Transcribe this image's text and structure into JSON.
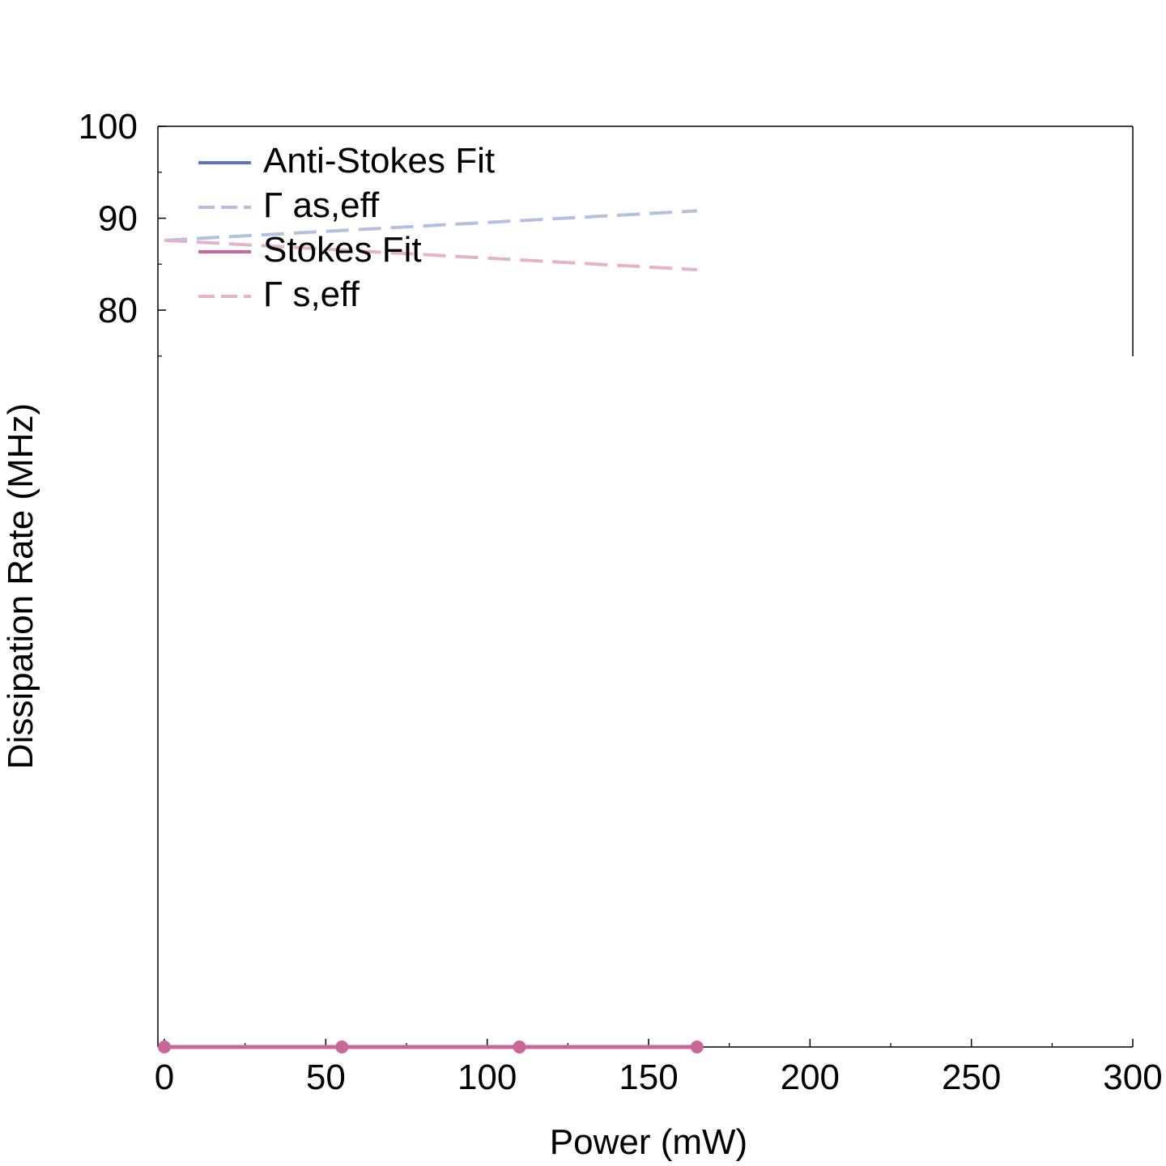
{
  "chart_data": {
    "type": "line",
    "xlabel": "Power (mW)",
    "ylabel": "Dissipation Rate (MHz)",
    "xlim": [
      0,
      300
    ],
    "x_ticks": [
      "0",
      "50",
      "100",
      "150",
      "200",
      "250",
      "300"
    ],
    "y_ticks": [
      "80",
      "90",
      "100"
    ],
    "legend_position": "top-left",
    "series": [
      {
        "name": "Anti-Stokes Fit",
        "style": "solid",
        "color": "#5b76c8",
        "x": [
          0,
          55,
          110,
          165
        ],
        "y": [
          0,
          0,
          0,
          0
        ],
        "markers": false
      },
      {
        "name": "Γ as,eff",
        "style": "dashed",
        "color": "#b3c0e4",
        "x": [
          0,
          165
        ],
        "y": [
          87.6,
          90.8
        ],
        "markers": false
      },
      {
        "name": "Stokes Fit",
        "style": "solid",
        "color": "#c9679a",
        "x": [
          0,
          55,
          110,
          165
        ],
        "y": [
          0,
          0,
          0,
          0
        ],
        "markers": true
      },
      {
        "name": "Γ s,eff",
        "style": "dashed",
        "color": "#e5b2c9",
        "x": [
          0,
          165
        ],
        "y": [
          87.6,
          84.4
        ],
        "markers": false
      }
    ]
  }
}
